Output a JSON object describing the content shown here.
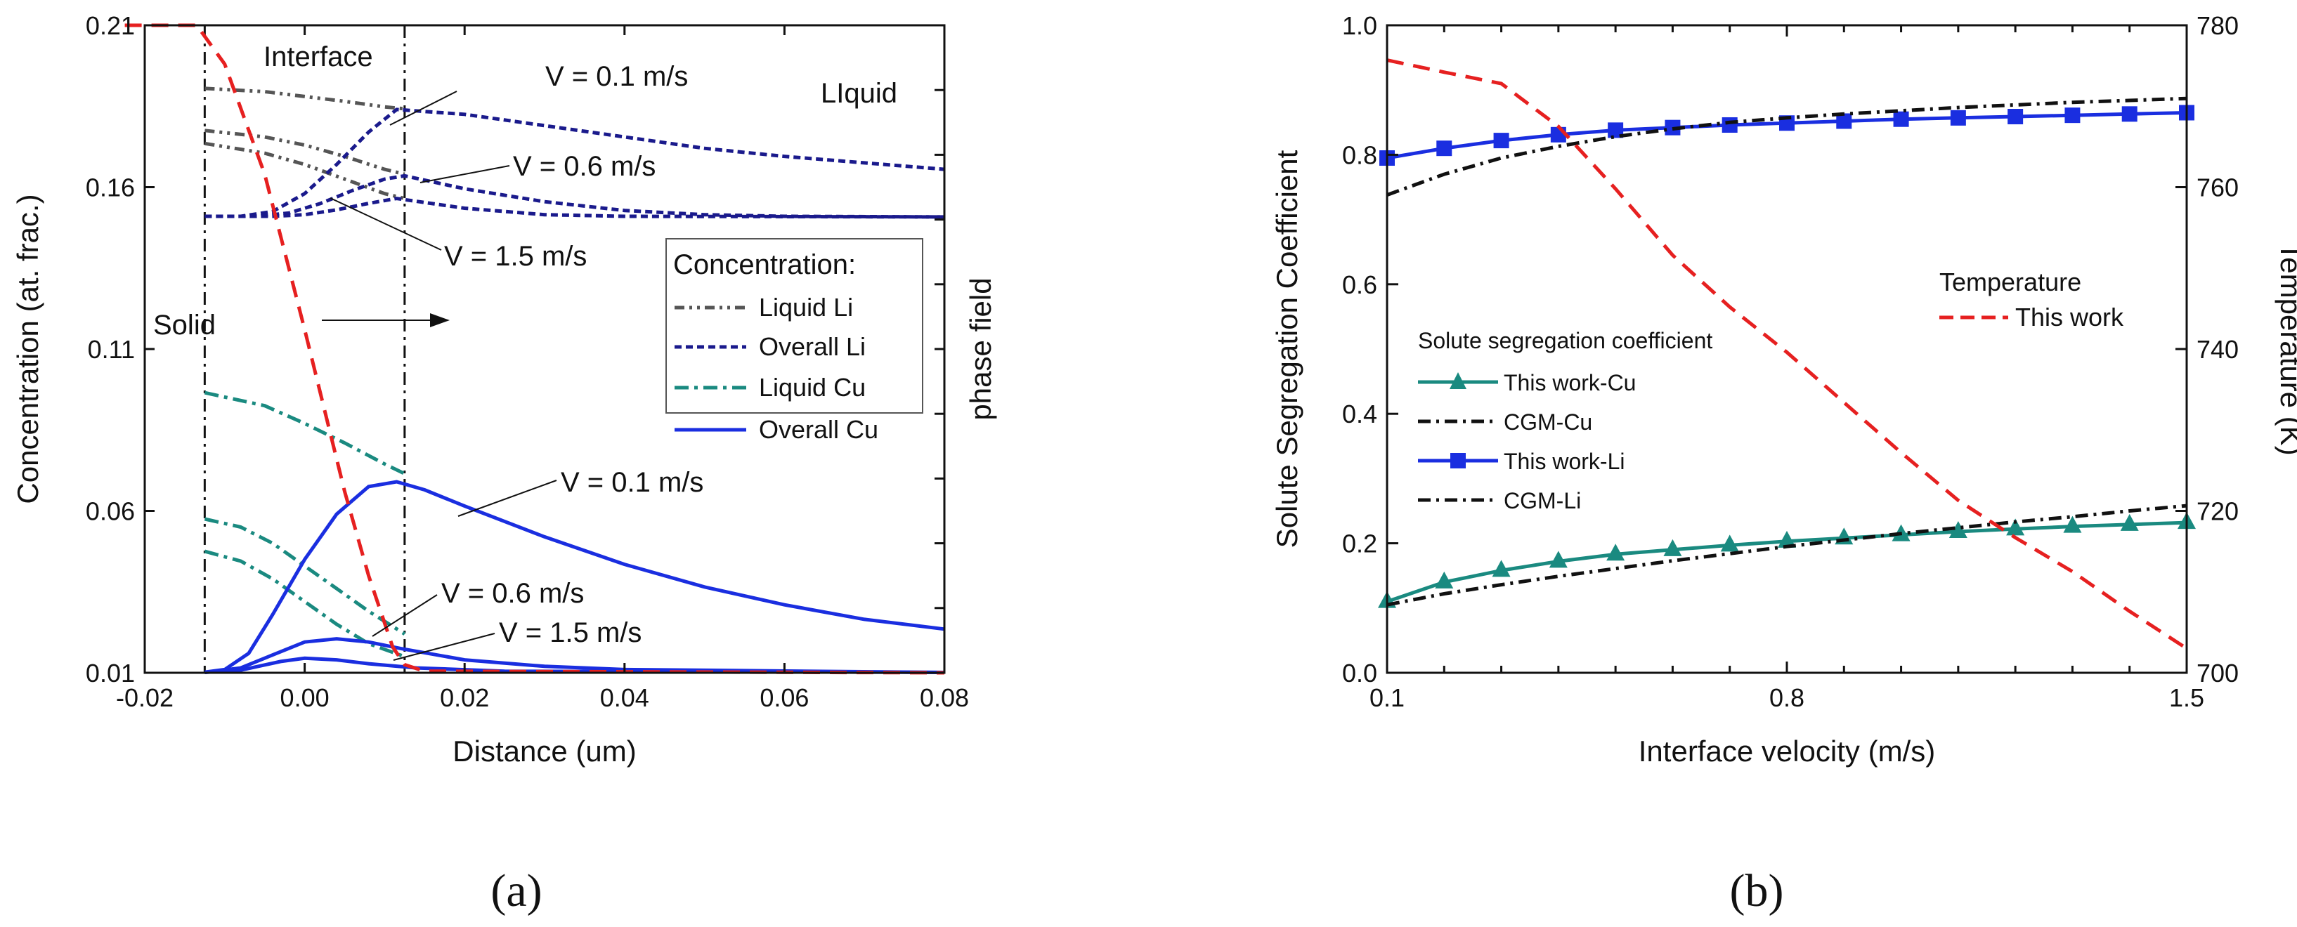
{
  "colors": {
    "liquid_li": "#555555",
    "overall_li": "#1a1a8c",
    "liquid_cu": "#1a8a80",
    "overall_cu": "#1a2ee0",
    "temperature": "#e62020",
    "cgm": "#111111",
    "this_work_cu": "#1a8a80",
    "this_work_li": "#1a2ee0"
  },
  "chart_data": [
    {
      "panel": "(a)",
      "type": "line",
      "xlabel": "Distance (um)",
      "ylabel": "Concentration (at. frac.)",
      "y2label": "phase field",
      "xlim": [
        -0.02,
        0.08
      ],
      "ylim": [
        0.01,
        0.21
      ],
      "xticks": [
        "-0.02",
        "0.00",
        "0.02",
        "0.04",
        "0.06",
        "0.08"
      ],
      "yticks": [
        "0.01",
        "0.06",
        "0.11",
        "0.16",
        "0.21"
      ],
      "interface_lines_x": [
        -0.0125,
        0.0125
      ],
      "annotations": {
        "interface": "Interface",
        "liquid": "LIquid",
        "solid": "Solid",
        "v01_top": "V = 0.1 m/s",
        "v06_top": "V = 0.6 m/s",
        "v15_top": "V = 1.5 m/s",
        "v01_bottom": "V = 0.1 m/s",
        "v06_bottom": "V = 0.6 m/s",
        "v15_bottom": "V = 1.5 m/s"
      },
      "legend": {
        "title": "Concentration:",
        "entries": [
          "Liquid Li",
          "Overall Li",
          "Liquid Cu",
          "Overall Cu"
        ]
      },
      "series": [
        {
          "name": "Liquid Li",
          "velocity": "0.1 m/s",
          "points": [
            [
              -0.0125,
              0.1905
            ],
            [
              -0.005,
              0.1895
            ],
            [
              0.0,
              0.188
            ],
            [
              0.005,
              0.1865
            ],
            [
              0.01,
              0.1848
            ],
            [
              0.0125,
              0.1842
            ]
          ]
        },
        {
          "name": "Liquid Li",
          "velocity": "0.6 m/s",
          "points": [
            [
              -0.0125,
              0.1775
            ],
            [
              -0.005,
              0.1755
            ],
            [
              0.0,
              0.173
            ],
            [
              0.005,
              0.1695
            ],
            [
              0.01,
              0.1655
            ],
            [
              0.0125,
              0.164
            ]
          ]
        },
        {
          "name": "Liquid Li",
          "velocity": "1.5 m/s",
          "points": [
            [
              -0.0125,
              0.1735
            ],
            [
              -0.005,
              0.1705
            ],
            [
              0.0,
              0.167
            ],
            [
              0.005,
              0.1625
            ],
            [
              0.01,
              0.158
            ],
            [
              0.0125,
              0.1565
            ]
          ]
        },
        {
          "name": "Overall Li",
          "velocity": "0.1 m/s",
          "points": [
            [
              -0.0125,
              0.151
            ],
            [
              -0.008,
              0.151
            ],
            [
              -0.004,
              0.1525
            ],
            [
              0.0,
              0.158
            ],
            [
              0.004,
              0.167
            ],
            [
              0.008,
              0.177
            ],
            [
              0.0115,
              0.184
            ],
            [
              0.02,
              0.1825
            ],
            [
              0.03,
              0.179
            ],
            [
              0.04,
              0.1755
            ],
            [
              0.05,
              0.172
            ],
            [
              0.06,
              0.1695
            ],
            [
              0.07,
              0.1675
            ],
            [
              0.08,
              0.1655
            ]
          ]
        },
        {
          "name": "Overall Li",
          "velocity": "0.6 m/s",
          "points": [
            [
              -0.0125,
              0.151
            ],
            [
              -0.006,
              0.151
            ],
            [
              -0.002,
              0.152
            ],
            [
              0.002,
              0.155
            ],
            [
              0.006,
              0.159
            ],
            [
              0.01,
              0.1625
            ],
            [
              0.0125,
              0.1635
            ],
            [
              0.02,
              0.1595
            ],
            [
              0.03,
              0.1555
            ],
            [
              0.04,
              0.1528
            ],
            [
              0.05,
              0.1515
            ],
            [
              0.06,
              0.151
            ],
            [
              0.08,
              0.1508
            ]
          ]
        },
        {
          "name": "Overall Li",
          "velocity": "1.5 m/s",
          "points": [
            [
              -0.0125,
              0.151
            ],
            [
              -0.004,
              0.151
            ],
            [
              0.0,
              0.1515
            ],
            [
              0.004,
              0.153
            ],
            [
              0.008,
              0.155
            ],
            [
              0.0115,
              0.1565
            ],
            [
              0.02,
              0.1535
            ],
            [
              0.03,
              0.1515
            ],
            [
              0.04,
              0.151
            ],
            [
              0.08,
              0.1508
            ]
          ]
        },
        {
          "name": "Liquid Cu",
          "velocity": "0.1 m/s",
          "points": [
            [
              -0.0125,
              0.0965
            ],
            [
              -0.005,
              0.0925
            ],
            [
              0.0,
              0.087
            ],
            [
              0.005,
              0.081
            ],
            [
              0.01,
              0.0745
            ],
            [
              0.0125,
              0.0715
            ]
          ]
        },
        {
          "name": "Liquid Cu",
          "velocity": "0.6 m/s",
          "points": [
            [
              -0.0125,
              0.0575
            ],
            [
              -0.008,
              0.055
            ],
            [
              -0.004,
              0.05
            ],
            [
              0.0,
              0.043
            ],
            [
              0.004,
              0.036
            ],
            [
              0.008,
              0.029
            ],
            [
              0.0125,
              0.022
            ]
          ]
        },
        {
          "name": "Liquid Cu",
          "velocity": "1.5 m/s",
          "points": [
            [
              -0.0125,
              0.0475
            ],
            [
              -0.008,
              0.0445
            ],
            [
              -0.004,
              0.039
            ],
            [
              0.0,
              0.032
            ],
            [
              0.004,
              0.025
            ],
            [
              0.008,
              0.019
            ],
            [
              0.0125,
              0.015
            ]
          ]
        },
        {
          "name": "Overall Cu",
          "velocity": "0.1 m/s",
          "points": [
            [
              -0.0125,
              0.0102
            ],
            [
              -0.01,
              0.011
            ],
            [
              -0.007,
              0.016
            ],
            [
              -0.004,
              0.028
            ],
            [
              0.0,
              0.045
            ],
            [
              0.004,
              0.059
            ],
            [
              0.008,
              0.0675
            ],
            [
              0.0115,
              0.069
            ],
            [
              0.015,
              0.0665
            ],
            [
              0.02,
              0.0615
            ],
            [
              0.03,
              0.052
            ],
            [
              0.04,
              0.0435
            ],
            [
              0.05,
              0.0365
            ],
            [
              0.06,
              0.031
            ],
            [
              0.07,
              0.0265
            ],
            [
              0.08,
              0.0235
            ]
          ]
        },
        {
          "name": "Overall Cu",
          "velocity": "0.6 m/s",
          "points": [
            [
              -0.0125,
              0.0101
            ],
            [
              -0.008,
              0.0115
            ],
            [
              -0.004,
              0.0155
            ],
            [
              0.0,
              0.0195
            ],
            [
              0.004,
              0.0205
            ],
            [
              0.008,
              0.0195
            ],
            [
              0.012,
              0.0175
            ],
            [
              0.02,
              0.014
            ],
            [
              0.03,
              0.012
            ],
            [
              0.04,
              0.011
            ],
            [
              0.08,
              0.0101
            ]
          ]
        },
        {
          "name": "Overall Cu",
          "velocity": "1.5 m/s",
          "points": [
            [
              -0.0125,
              0.0101
            ],
            [
              -0.008,
              0.0108
            ],
            [
              -0.003,
              0.0135
            ],
            [
              0.0,
              0.0145
            ],
            [
              0.004,
              0.014
            ],
            [
              0.008,
              0.0128
            ],
            [
              0.014,
              0.0115
            ],
            [
              0.025,
              0.0105
            ],
            [
              0.08,
              0.0101
            ]
          ]
        },
        {
          "name": "phase field",
          "points": [
            [
              -0.0225,
              0.21
            ],
            [
              -0.0135,
              0.21
            ],
            [
              -0.01,
              0.198
            ],
            [
              -0.005,
              0.164
            ],
            [
              0.0,
              0.116
            ],
            [
              0.005,
              0.066
            ],
            [
              0.008,
              0.04
            ],
            [
              0.011,
              0.018
            ],
            [
              0.0125,
              0.0125
            ],
            [
              0.015,
              0.0105
            ],
            [
              0.08,
              0.01
            ]
          ]
        }
      ]
    },
    {
      "panel": "(b)",
      "type": "line",
      "xlabel": "Interface velocity (m/s)",
      "ylabel": "Solute Segregation Coefficient",
      "y2label": "Temperature (K)",
      "xlim": [
        0.1,
        1.5
      ],
      "ylim": [
        0.0,
        1.0
      ],
      "y2lim": [
        700,
        780
      ],
      "xticks": [
        "0.1",
        "0.8",
        "1.5"
      ],
      "yticks": [
        "0.0",
        "0.2",
        "0.4",
        "0.6",
        "0.8",
        "1.0"
      ],
      "y2ticks": [
        "700",
        "720",
        "740",
        "760",
        "780"
      ],
      "legend": {
        "title": "Solute segregation coefficient",
        "entries": [
          "This work-Cu",
          "CGM-Cu",
          "This work-Li",
          "CGM-Li"
        ],
        "temp_title": "Temperature",
        "temp_entry": "This work"
      },
      "series": [
        {
          "name": "This work-Cu",
          "x": [
            0.1,
            0.2,
            0.3,
            0.4,
            0.5,
            0.6,
            0.7,
            0.8,
            0.9,
            1.0,
            1.1,
            1.2,
            1.3,
            1.4,
            1.5
          ],
          "y": [
            0.11,
            0.14,
            0.158,
            0.172,
            0.183,
            0.19,
            0.197,
            0.203,
            0.208,
            0.213,
            0.218,
            0.222,
            0.226,
            0.229,
            0.232
          ]
        },
        {
          "name": "CGM-Cu",
          "x": [
            0.1,
            0.2,
            0.3,
            0.4,
            0.5,
            0.6,
            0.7,
            0.8,
            0.9,
            1.0,
            1.1,
            1.2,
            1.3,
            1.4,
            1.5
          ],
          "y": [
            0.105,
            0.122,
            0.136,
            0.149,
            0.161,
            0.173,
            0.184,
            0.195,
            0.205,
            0.215,
            0.224,
            0.233,
            0.241,
            0.25,
            0.258
          ]
        },
        {
          "name": "This work-Li",
          "x": [
            0.1,
            0.2,
            0.3,
            0.4,
            0.5,
            0.6,
            0.7,
            0.8,
            0.9,
            1.0,
            1.1,
            1.2,
            1.3,
            1.4,
            1.5
          ],
          "y": [
            0.795,
            0.81,
            0.822,
            0.831,
            0.838,
            0.842,
            0.846,
            0.849,
            0.852,
            0.855,
            0.857,
            0.859,
            0.861,
            0.863,
            0.865
          ]
        },
        {
          "name": "CGM-Li",
          "x": [
            0.1,
            0.2,
            0.3,
            0.4,
            0.5,
            0.6,
            0.7,
            0.8,
            0.9,
            1.0,
            1.1,
            1.2,
            1.3,
            1.4,
            1.5
          ],
          "y": [
            0.738,
            0.77,
            0.795,
            0.813,
            0.828,
            0.84,
            0.85,
            0.857,
            0.863,
            0.868,
            0.873,
            0.877,
            0.881,
            0.884,
            0.887
          ]
        },
        {
          "name": "Temperature - This work",
          "axis": "right",
          "x": [
            0.1,
            0.2,
            0.3,
            0.4,
            0.5,
            0.6,
            0.7,
            0.8,
            0.9,
            1.0,
            1.1,
            1.2,
            1.3,
            1.4,
            1.5
          ],
          "y": [
            775.7,
            774.2,
            772.8,
            767.5,
            759.8,
            751.6,
            745.2,
            739.6,
            733.4,
            727.2,
            721.3,
            716.7,
            712.5,
            707.6,
            703.0
          ]
        }
      ]
    }
  ],
  "panel_labels": {
    "a": "(a)",
    "b": "(b)"
  }
}
